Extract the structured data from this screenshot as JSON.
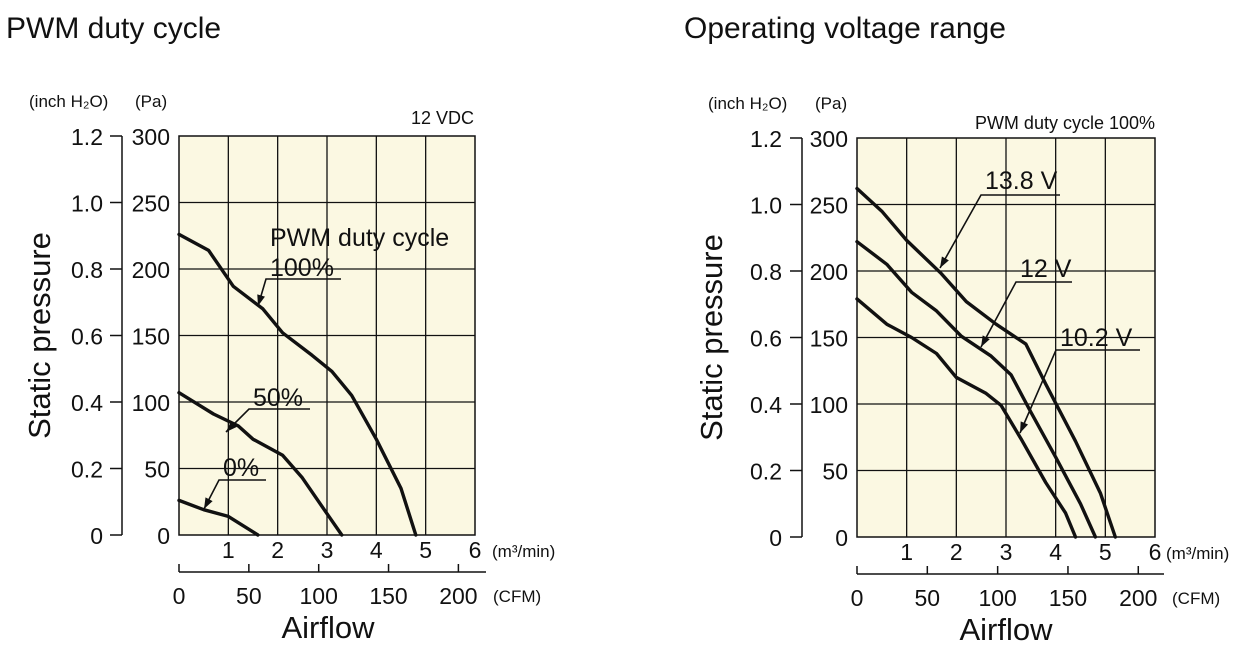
{
  "chart_data": [
    {
      "type": "line",
      "title": "PWM duty cycle",
      "xlabel": "Airflow",
      "ylabel": "Static pressure",
      "y_unit_left": "(inch H₂O)",
      "y_unit_right": "(Pa)",
      "x_unit_top": "(m³/min)",
      "x_unit_bottom": "(CFM)",
      "note": "12 VDC",
      "legend_title": "PWM duty cycle",
      "xlim": [
        0,
        6
      ],
      "ylim": [
        0,
        300
      ],
      "x_ticks": [
        "1",
        "2",
        "3",
        "4",
        "5",
        "6"
      ],
      "x_ticks_cfm": [
        "0",
        "50",
        "100",
        "150",
        "200"
      ],
      "y_ticks_pa": [
        "0",
        "50",
        "100",
        "150",
        "200",
        "250",
        "300"
      ],
      "y_ticks_inch": [
        "0",
        "0.2",
        "0.4",
        "0.6",
        "0.8",
        "1.0",
        "1.2"
      ],
      "grid": true,
      "series": [
        {
          "name": "100%",
          "x": [
            0,
            0.6,
            1.1,
            1.7,
            2.1,
            2.7,
            3.1,
            3.5,
            4.0,
            4.5,
            4.8
          ],
          "y": [
            226,
            214,
            187,
            170,
            152,
            135,
            123,
            105,
            72,
            35,
            0
          ]
        },
        {
          "name": "50%",
          "x": [
            0,
            0.7,
            1.2,
            1.5,
            2.1,
            2.5,
            3.0,
            3.3
          ],
          "y": [
            107,
            91,
            82,
            72,
            60,
            43,
            16,
            0
          ]
        },
        {
          "name": "0%",
          "x": [
            0,
            0.5,
            1.0,
            1.6
          ],
          "y": [
            26,
            19,
            14,
            0
          ]
        }
      ]
    },
    {
      "type": "line",
      "title": "Operating voltage range",
      "xlabel": "Airflow",
      "ylabel": "Static pressure",
      "y_unit_left": "(inch H₂O)",
      "y_unit_right": "(Pa)",
      "x_unit_top": "(m³/min)",
      "x_unit_bottom": "(CFM)",
      "note": "PWM duty cycle 100%",
      "xlim": [
        0,
        6
      ],
      "ylim": [
        0,
        300
      ],
      "x_ticks": [
        "1",
        "2",
        "3",
        "4",
        "5",
        "6"
      ],
      "x_ticks_cfm": [
        "0",
        "50",
        "100",
        "150",
        "200"
      ],
      "y_ticks_pa": [
        "0",
        "50",
        "100",
        "150",
        "200",
        "250",
        "300"
      ],
      "y_ticks_inch": [
        "0",
        "0.2",
        "0.4",
        "0.6",
        "0.8",
        "1.0",
        "1.2"
      ],
      "grid": true,
      "series": [
        {
          "name": "13.8 V",
          "x": [
            0,
            0.5,
            1.0,
            1.7,
            2.2,
            2.8,
            3.4,
            3.8,
            4.4,
            4.9,
            5.2
          ],
          "y": [
            262,
            245,
            223,
            198,
            177,
            160,
            145,
            115,
            72,
            33,
            0
          ]
        },
        {
          "name": "12 V",
          "x": [
            0,
            0.6,
            1.1,
            1.6,
            2.1,
            2.7,
            3.1,
            3.5,
            4.0,
            4.5,
            4.8
          ],
          "y": [
            222,
            205,
            184,
            170,
            151,
            136,
            122,
            94,
            60,
            25,
            0
          ]
        },
        {
          "name": "10.2 V",
          "x": [
            0,
            0.6,
            1.1,
            1.6,
            2.0,
            2.6,
            2.9,
            3.3,
            3.8,
            4.2,
            4.4
          ],
          "y": [
            179,
            160,
            150,
            138,
            120,
            108,
            99,
            74,
            41,
            18,
            0
          ]
        }
      ]
    }
  ]
}
